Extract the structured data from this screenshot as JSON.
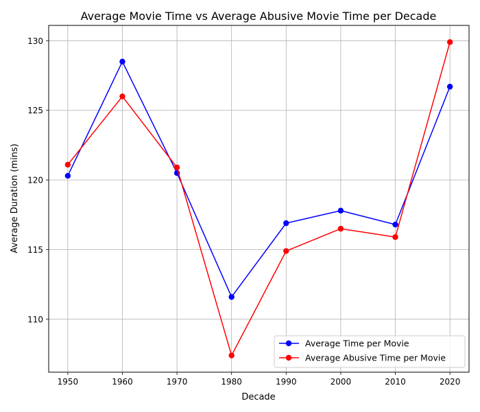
{
  "chart_data": {
    "type": "line",
    "title": "Average Movie Time vs Average Abusive Movie Time per Decade",
    "xlabel": "Decade",
    "ylabel": "Average Duration (mins)",
    "x": [
      1950,
      1960,
      1970,
      1980,
      1990,
      2000,
      2010,
      2020
    ],
    "x_ticks": [
      "1950",
      "1960",
      "1970",
      "1980",
      "1990",
      "2000",
      "2010",
      "2020"
    ],
    "y_ticks": [
      "110",
      "115",
      "120",
      "125",
      "130"
    ],
    "ylim": [
      106.2,
      131.1
    ],
    "grid": true,
    "legend_position": "lower-right",
    "series": [
      {
        "name": "Average Time per Movie",
        "color": "#0000ff",
        "marker": "circle",
        "values": [
          120.3,
          128.5,
          120.5,
          111.6,
          116.9,
          117.8,
          116.8,
          126.7
        ]
      },
      {
        "name": "Average Abusive Time per Movie",
        "color": "#ff0000",
        "marker": "circle",
        "values": [
          121.1,
          126.0,
          120.9,
          107.4,
          114.9,
          116.5,
          115.9,
          129.9
        ]
      }
    ]
  }
}
